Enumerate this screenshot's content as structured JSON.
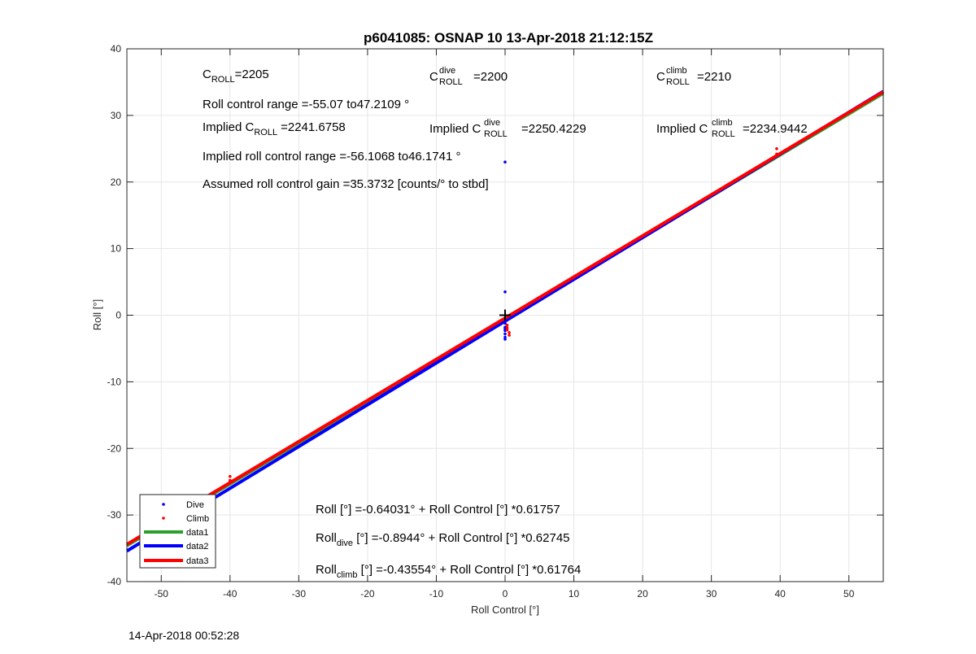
{
  "chart_data": {
    "type": "scatter",
    "title": "p6041085: OSNAP 10 13-Apr-2018 21:12:15Z",
    "xlabel": "Roll Control [°]",
    "ylabel": "Roll [°]",
    "xlim": [
      -55,
      55
    ],
    "ylim": [
      -40,
      40
    ],
    "xticks": [
      -50,
      -40,
      -30,
      -20,
      -10,
      0,
      10,
      20,
      30,
      40,
      50
    ],
    "yticks": [
      -40,
      -30,
      -20,
      -10,
      0,
      10,
      20,
      30,
      40
    ],
    "grid": true,
    "legend_position": "bottom-left",
    "series": [
      {
        "name": "Dive",
        "kind": "points",
        "color": "#0000ff",
        "points": [
          [
            0,
            23
          ],
          [
            0,
            3.5
          ],
          [
            0,
            -1.2
          ],
          [
            0,
            -1.8
          ],
          [
            0,
            -2.3
          ],
          [
            0,
            -2.8
          ],
          [
            0,
            -3.3
          ],
          [
            0,
            -3.6
          ],
          [
            0,
            -2.0
          ]
        ]
      },
      {
        "name": "Climb",
        "kind": "points",
        "color": "#ff0000",
        "points": [
          [
            -40,
            -24.2
          ],
          [
            -40,
            -24.8
          ],
          [
            39.5,
            24.2
          ],
          [
            39.5,
            25.0
          ],
          [
            0.3,
            -1.5
          ],
          [
            0.3,
            -2.2
          ],
          [
            0.6,
            -3.0
          ],
          [
            0.6,
            -2.6
          ],
          [
            0.3,
            -1.9
          ]
        ]
      },
      {
        "name": "data1",
        "kind": "line",
        "color": "#2ca02c",
        "intercept": -0.64031,
        "slope": 0.61757
      },
      {
        "name": "data2",
        "kind": "line",
        "color": "#0000ff",
        "intercept": -0.8944,
        "slope": 0.62745
      },
      {
        "name": "data3",
        "kind": "line",
        "color": "#ff0000",
        "intercept": -0.43554,
        "slope": 0.61764
      }
    ],
    "origin_marker": {
      "symbol": "+",
      "x": 0,
      "y": 0
    }
  },
  "annotations": {
    "c_roll_label": "C",
    "c_roll_sub": "ROLL",
    "c_roll_value": "=2205",
    "c_dive_label": "C",
    "c_dive_sub": "ROLL",
    "c_dive_sup": "dive",
    "c_dive_value": "=2200",
    "c_climb_label": "C",
    "c_climb_sub": "ROLL",
    "c_climb_sup": "climb",
    "c_climb_value": "=2210",
    "roll_range": "Roll control range =-55.07 to47.2109 °",
    "implied_c_prefix": "Implied C",
    "implied_c_sub": "ROLL",
    "implied_c_value": "=2241.6758",
    "implied_dive_prefix": "Implied C",
    "implied_dive_sup": "dive",
    "implied_dive_sub": "ROLL",
    "implied_dive_value": "=2250.4229",
    "implied_climb_prefix": "Implied C",
    "implied_climb_sup": "climb",
    "implied_climb_sub": "ROLL",
    "implied_climb_value": "=2234.9442",
    "implied_range": "Implied roll control range =-56.1068 to46.1741 °",
    "gain": "Assumed roll control gain =35.3732 [counts/° to stbd]",
    "fit_all": "Roll [°] =-0.64031° + Roll Control [°] *0.61757",
    "fit_dive_prefix": "Roll",
    "fit_dive_sub": "dive",
    "fit_dive_rest": " [°] =-0.8944° + Roll Control [°] *0.62745",
    "fit_climb_prefix": "Roll",
    "fit_climb_sub": "climb",
    "fit_climb_rest": " [°] =-0.43554° + Roll Control [°] *0.61764"
  },
  "footer": {
    "timestamp": "14-Apr-2018 00:52:28"
  }
}
